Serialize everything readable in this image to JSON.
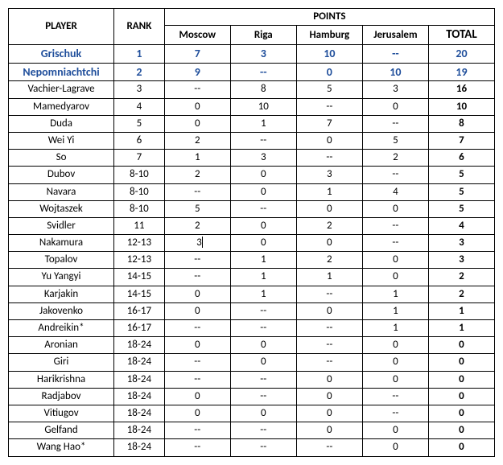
{
  "headers": {
    "player": "PLAYER",
    "rank": "RANK",
    "points": "POINTS",
    "cities": [
      "Moscow",
      "Riga",
      "Hamburg",
      "Jerusalem"
    ],
    "total": "TOTAL"
  },
  "colors": {
    "highlight_text": "#1f4e9b",
    "border": "#000000",
    "background": "#ffffff"
  },
  "editing_cell": {
    "row": 11,
    "col": "moscow",
    "value": "3"
  },
  "rows": [
    {
      "player": "Grischuk",
      "rank": "1",
      "moscow": "7",
      "riga": "3",
      "hamburg": "10",
      "jerusalem": "--",
      "total": "20",
      "highlight": true
    },
    {
      "player": "Nepomniachtchi",
      "rank": "2",
      "moscow": "9",
      "riga": "--",
      "hamburg": "0",
      "jerusalem": "10",
      "total": "19",
      "highlight": true
    },
    {
      "player": "Vachier-Lagrave",
      "rank": "3",
      "moscow": "--",
      "riga": "8",
      "hamburg": "5",
      "jerusalem": "3",
      "total": "16"
    },
    {
      "player": "Mamedyarov",
      "rank": "4",
      "moscow": "0",
      "riga": "10",
      "hamburg": "--",
      "jerusalem": "0",
      "total": "10"
    },
    {
      "player": "Duda",
      "rank": "5",
      "moscow": "0",
      "riga": "1",
      "hamburg": "7",
      "jerusalem": "--",
      "total": "8"
    },
    {
      "player": "Wei Yi",
      "rank": "6",
      "moscow": "2",
      "riga": "--",
      "hamburg": "0",
      "jerusalem": "5",
      "total": "7"
    },
    {
      "player": "So",
      "rank": "7",
      "moscow": "1",
      "riga": "3",
      "hamburg": "--",
      "jerusalem": "2",
      "total": "6"
    },
    {
      "player": "Dubov",
      "rank": "8-10",
      "moscow": "2",
      "riga": "0",
      "hamburg": "3",
      "jerusalem": "--",
      "total": "5"
    },
    {
      "player": "Navara",
      "rank": "8-10",
      "moscow": "--",
      "riga": "0",
      "hamburg": "1",
      "jerusalem": "4",
      "total": "5"
    },
    {
      "player": "Wojtaszek",
      "rank": "8-10",
      "moscow": "5",
      "riga": "--",
      "hamburg": "0",
      "jerusalem": "0",
      "total": "5"
    },
    {
      "player": "Svidler",
      "rank": "11",
      "moscow": "2",
      "riga": "0",
      "hamburg": "2",
      "jerusalem": "--",
      "total": "4"
    },
    {
      "player": "Nakamura",
      "rank": "12-13",
      "moscow": "3",
      "riga": "0",
      "hamburg": "0",
      "jerusalem": "--",
      "total": "3",
      "editing": true
    },
    {
      "player": "Topalov",
      "rank": "12-13",
      "moscow": "--",
      "riga": "1",
      "hamburg": "2",
      "jerusalem": "0",
      "total": "3"
    },
    {
      "player": "Yu Yangyi",
      "rank": "14-15",
      "moscow": "--",
      "riga": "1",
      "hamburg": "1",
      "jerusalem": "0",
      "total": "2"
    },
    {
      "player": "Karjakin",
      "rank": "14-15",
      "moscow": "0",
      "riga": "1",
      "hamburg": "--",
      "jerusalem": "1",
      "total": "2"
    },
    {
      "player": "Jakovenko",
      "rank": "16-17",
      "moscow": "0",
      "riga": "--",
      "hamburg": "0",
      "jerusalem": "1",
      "total": "1"
    },
    {
      "player": "Andreikin*",
      "rank": "16-17",
      "moscow": "--",
      "riga": "--",
      "hamburg": "--",
      "jerusalem": "1",
      "total": "1"
    },
    {
      "player": "Aronian",
      "rank": "18-24",
      "moscow": "0",
      "riga": "0",
      "hamburg": "--",
      "jerusalem": "0",
      "total": "0"
    },
    {
      "player": "Giri",
      "rank": "18-24",
      "moscow": "--",
      "riga": "0",
      "hamburg": "--",
      "jerusalem": "0",
      "total": "0"
    },
    {
      "player": "Harikrishna",
      "rank": "18-24",
      "moscow": "--",
      "riga": "--",
      "hamburg": "0",
      "jerusalem": "0",
      "total": "0"
    },
    {
      "player": "Radjabov",
      "rank": "18-24",
      "moscow": "0",
      "riga": "--",
      "hamburg": "0",
      "jerusalem": "--",
      "total": "0"
    },
    {
      "player": "Vitiugov",
      "rank": "18-24",
      "moscow": "0",
      "riga": "0",
      "hamburg": "0",
      "jerusalem": "--",
      "total": "0"
    },
    {
      "player": "Gelfand",
      "rank": "18-24",
      "moscow": "--",
      "riga": "--",
      "hamburg": "0",
      "jerusalem": "0",
      "total": "0"
    },
    {
      "player": "Wang Hao*",
      "rank": "18-24",
      "moscow": "--",
      "riga": "--",
      "hamburg": "--",
      "jerusalem": "0",
      "total": "0"
    }
  ]
}
